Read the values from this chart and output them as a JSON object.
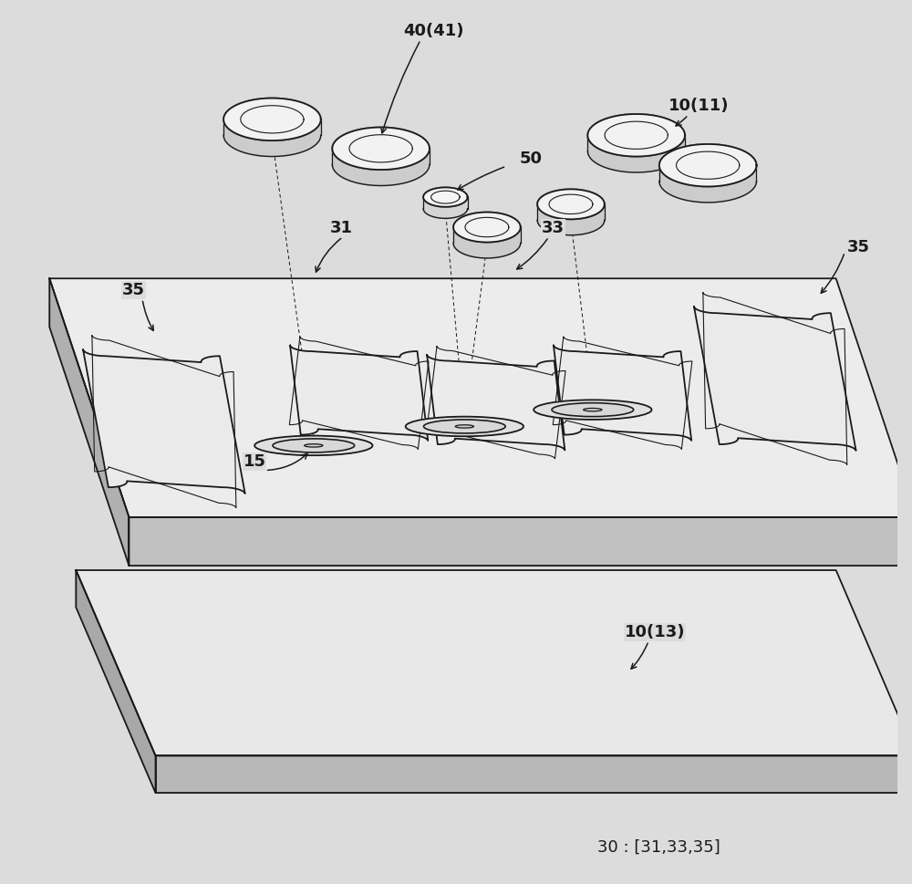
{
  "background_color": "#dcdcdc",
  "line_color": "#1a1a1a",
  "fig_w": 10.0,
  "fig_h": 9.69,
  "dpi": 100,
  "labels": {
    "40_41": "40(41)",
    "50": "50",
    "10_11": "10(11)",
    "35_left": "35",
    "35_right": "35",
    "31": "31",
    "33": "33",
    "15": "15",
    "10_13": "10(13)",
    "legend": "30 : [31,33,35]"
  },
  "plate_top": {
    "tl": [
      0.04,
      0.685
    ],
    "tr": [
      0.93,
      0.685
    ],
    "bl": [
      0.13,
      0.415
    ],
    "br": [
      1.02,
      0.415
    ],
    "thickness": 0.055,
    "face_color": "#ececec",
    "front_color": "#c0c0c0",
    "left_color": "#b0b0b0"
  },
  "plate_bot": {
    "tl": [
      0.07,
      0.355
    ],
    "tr": [
      0.93,
      0.355
    ],
    "bl": [
      0.16,
      0.145
    ],
    "br": [
      1.02,
      0.145
    ],
    "thickness": 0.042,
    "face_color": "#e8e8e8",
    "front_color": "#b8b8b8",
    "left_color": "#a8a8a8"
  }
}
